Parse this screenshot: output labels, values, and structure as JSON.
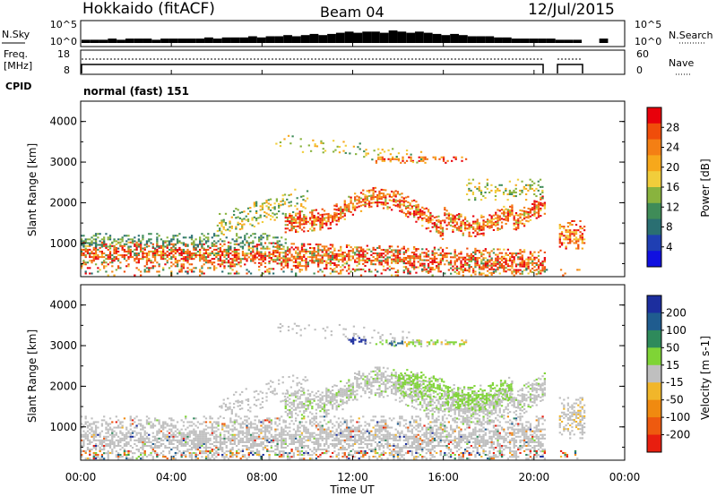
{
  "header": {
    "station": "Hokkaido (fitACF)",
    "beam": "Beam 04",
    "date": "12/Jul/2015"
  },
  "nsky_panel": {
    "left_label": "N.Sky",
    "left_ticks": [
      "10^5",
      "10^0"
    ],
    "right_ticks": [
      "10^5",
      "10^0"
    ],
    "right_label": "N.Search",
    "profile": [
      2,
      2,
      2,
      3,
      2,
      3,
      3,
      3,
      2,
      3,
      3,
      3,
      3,
      3,
      4,
      3,
      4,
      4,
      4,
      5,
      4,
      5,
      5,
      6,
      5,
      6,
      7,
      6,
      7,
      8,
      9,
      8,
      9,
      9,
      8,
      10,
      9,
      8,
      9,
      8,
      7,
      6,
      7,
      6,
      5,
      5,
      5,
      4,
      4,
      3,
      3,
      3,
      3,
      3,
      2,
      2,
      2,
      0,
      0,
      3,
      0,
      0
    ]
  },
  "freq_panel": {
    "left_label_1": "Freq.",
    "left_label_2": "[MHz]",
    "left_ticks": [
      "18",
      "8"
    ],
    "right_ticks": [
      "60",
      "0"
    ],
    "right_label": "Nave"
  },
  "cpid": {
    "label": "CPID",
    "value": "normal (fast) 151"
  },
  "power_panel": {
    "ylabel": "Slant Range [km]",
    "yticks": [
      "4000",
      "3000",
      "2000",
      "1000"
    ],
    "colorbar_label": "Power [dB]",
    "colorbar_ticks": [
      "28",
      "24",
      "20",
      "16",
      "12",
      "8",
      "4"
    ],
    "colors": [
      "#e8000b",
      "#f04d0a",
      "#f47f14",
      "#f7a81b",
      "#f1cd3b",
      "#89b33e",
      "#3f8c58",
      "#2a6f72",
      "#1f3fb3",
      "#1010e0"
    ]
  },
  "velocity_panel": {
    "ylabel": "Slant Range [km]",
    "yticks": [
      "4000",
      "3000",
      "2000",
      "1000"
    ],
    "colorbar_label": "Velocity [m s-1]",
    "colorbar_ticks": [
      "200",
      "100",
      "50",
      "15",
      "-15",
      "-50",
      "-100",
      "-200"
    ],
    "colors": [
      "#1c2e9e",
      "#1f5c8f",
      "#2e8a5b",
      "#7fd436",
      "#bfbfbf",
      "#f1b62a",
      "#f08a10",
      "#ee5a0f",
      "#e81e0f"
    ]
  },
  "x_axis": {
    "ticks": [
      "00:00",
      "04:00",
      "08:00",
      "12:00",
      "16:00",
      "20:00",
      "00:00"
    ],
    "label": "Time UT"
  },
  "chart_data": {
    "type": "heatmap",
    "x_range_hours": [
      0,
      24
    ],
    "y_range_km": [
      180,
      4500
    ],
    "data_gap_hours": [
      20.6,
      21.1
    ],
    "data_end_hours": 22.2,
    "power_features": [
      {
        "t": [
          0,
          20.6
        ],
        "r": [
          400,
          1100
        ],
        "power_db": 24
      },
      {
        "t": [
          10,
          20.6
        ],
        "r": [
          1500,
          2600
        ],
        "power_db": 26
      },
      {
        "t": [
          6,
          9
        ],
        "r": [
          1000,
          2200
        ],
        "power_db": 14
      },
      {
        "t": [
          13,
          17
        ],
        "r": [
          2900,
          3200
        ],
        "power_db": 20
      }
    ],
    "velocity_features": [
      {
        "t": [
          0,
          20.6
        ],
        "r": [
          200,
          1300
        ],
        "velocity_ms": 0
      },
      {
        "t": [
          14,
          19
        ],
        "r": [
          1500,
          2600
        ],
        "velocity_ms": 30
      },
      {
        "t": [
          11.8,
          12.6
        ],
        "r": [
          3000,
          3200
        ],
        "velocity_ms": 150
      }
    ]
  }
}
